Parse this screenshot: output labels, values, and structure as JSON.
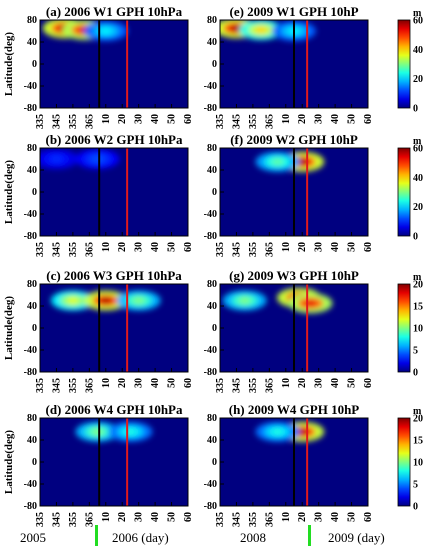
{
  "chart_data": [
    {
      "type": "heatmap",
      "title": "(a) 2006 W1 GPH 10hPa",
      "ylabel": "Latitude(deg)",
      "x_ticks": [
        "335",
        "345",
        "355",
        "365",
        "10",
        "20",
        "30",
        "40",
        "50",
        "60"
      ],
      "y_ticks": [
        80,
        40,
        0,
        -40,
        -80
      ],
      "ylim": [
        -80,
        80
      ],
      "colorbar_ticks": [],
      "colorbar_unit": "",
      "vlines": {
        "black": "day 6",
        "red": "day 23"
      },
      "blobs": [
        {
          "x": 350,
          "lat": 65,
          "value": 58
        },
        {
          "x": 362,
          "lat": 62,
          "value": 55
        },
        {
          "x": 10,
          "lat": 60,
          "value": 22
        }
      ]
    },
    {
      "type": "heatmap",
      "title": "(b) 2006 W2 GPH 10hPa",
      "ylabel": "Latitude(deg)",
      "x_ticks": [
        "335",
        "345",
        "355",
        "365",
        "10",
        "20",
        "30",
        "40",
        "50",
        "60"
      ],
      "y_ticks": [
        80,
        40,
        0,
        -40,
        -80
      ],
      "ylim": [
        -80,
        80
      ],
      "colorbar_ticks": [],
      "colorbar_unit": "",
      "vlines": {
        "black": "day 6",
        "red": "day 23"
      },
      "blobs": [
        {
          "x": 345,
          "lat": 60,
          "value": 10
        },
        {
          "x": 5,
          "lat": 60,
          "value": 12
        }
      ]
    },
    {
      "type": "heatmap",
      "title": "(c) 2006 W3 GPH 10hPa",
      "ylabel": "Latitude(deg)",
      "x_ticks": [
        "335",
        "345",
        "355",
        "365",
        "10",
        "20",
        "30",
        "40",
        "50",
        "60"
      ],
      "y_ticks": [
        80,
        40,
        0,
        -40,
        -80
      ],
      "ylim": [
        -80,
        80
      ],
      "colorbar_ticks": [],
      "colorbar_unit": "",
      "vlines": {
        "black": "day 6",
        "red": "day 23"
      },
      "blobs": [
        {
          "x": 355,
          "lat": 50,
          "value": 12
        },
        {
          "x": 10,
          "lat": 50,
          "value": 19
        },
        {
          "x": 30,
          "lat": 50,
          "value": 10
        }
      ]
    },
    {
      "type": "heatmap",
      "title": "(d) 2006 W4 GPH 10hPa",
      "ylabel": "Latitude(deg)",
      "x_ticks": [
        "335",
        "345",
        "355",
        "365",
        "10",
        "20",
        "30",
        "40",
        "50",
        "60"
      ],
      "y_ticks": [
        80,
        40,
        0,
        -40,
        -80
      ],
      "ylim": [
        -80,
        80
      ],
      "colorbar_ticks": [],
      "colorbar_unit": "",
      "vlines": {
        "black": "day 6",
        "red": "day 23"
      },
      "blobs": [
        {
          "x": 5,
          "lat": 55,
          "value": 10
        },
        {
          "x": 25,
          "lat": 55,
          "value": 8
        }
      ]
    },
    {
      "type": "heatmap",
      "title": "(e) 2009 W1 GPH 10hP",
      "ylabel": "",
      "x_ticks": [
        "335",
        "345",
        "355",
        "365",
        "10",
        "20",
        "30",
        "40",
        "50",
        "60"
      ],
      "y_ticks": [
        80,
        40,
        0,
        -40,
        -80
      ],
      "ylim": [
        -80,
        80
      ],
      "colorbar_ticks": [
        "60",
        "40",
        "20",
        "0"
      ],
      "colorbar_unit": "m",
      "vlines": {
        "black": "day 15",
        "red": "day 23"
      },
      "blobs": [
        {
          "x": 345,
          "lat": 65,
          "value": 58
        },
        {
          "x": 360,
          "lat": 62,
          "value": 40
        },
        {
          "x": 15,
          "lat": 60,
          "value": 22
        }
      ]
    },
    {
      "type": "heatmap",
      "title": "(f) 2009 W2 GPH 10hP",
      "ylabel": "",
      "x_ticks": [
        "335",
        "345",
        "355",
        "365",
        "10",
        "20",
        "30",
        "40",
        "50",
        "60"
      ],
      "y_ticks": [
        80,
        40,
        0,
        -40,
        -80
      ],
      "ylim": [
        -80,
        80
      ],
      "colorbar_ticks": [
        "60",
        "40",
        "20",
        "0"
      ],
      "colorbar_unit": "m",
      "vlines": {
        "black": "day 15",
        "red": "day 23"
      },
      "blobs": [
        {
          "x": 20,
          "lat": 55,
          "value": 58
        },
        {
          "x": 5,
          "lat": 55,
          "value": 28
        }
      ]
    },
    {
      "type": "heatmap",
      "title": "(g) 2009 W3 GPH 10hP",
      "ylabel": "",
      "x_ticks": [
        "335",
        "345",
        "355",
        "365",
        "10",
        "20",
        "30",
        "40",
        "50",
        "60"
      ],
      "y_ticks": [
        80,
        40,
        0,
        -40,
        -80
      ],
      "ylim": [
        -80,
        80
      ],
      "colorbar_ticks": [
        "20",
        "15",
        "10",
        "5",
        "0"
      ],
      "colorbar_unit": "m",
      "vlines": {
        "black": "day 15",
        "red": "day 23"
      },
      "blobs": [
        {
          "x": 18,
          "lat": 55,
          "value": 19
        },
        {
          "x": 25,
          "lat": 45,
          "value": 18
        },
        {
          "x": 350,
          "lat": 50,
          "value": 10
        }
      ]
    },
    {
      "type": "heatmap",
      "title": "(h) 2009 W4 GPH 10hP",
      "ylabel": "",
      "x_ticks": [
        "335",
        "345",
        "355",
        "365",
        "10",
        "20",
        "30",
        "40",
        "50",
        "60"
      ],
      "y_ticks": [
        80,
        40,
        0,
        -40,
        -80
      ],
      "ylim": [
        -80,
        80
      ],
      "colorbar_ticks": [
        "20",
        "15",
        "10",
        "5",
        "0"
      ],
      "colorbar_unit": "m",
      "vlines": {
        "black": "day 15",
        "red": "day 23"
      },
      "blobs": [
        {
          "x": 20,
          "lat": 55,
          "value": 19
        },
        {
          "x": 5,
          "lat": 55,
          "value": 8
        }
      ]
    }
  ],
  "bottom_labels": {
    "year_a1": "2005",
    "year_a2": "2006 (day)",
    "year_b1": "2008",
    "year_b2": "2009 (day)"
  }
}
